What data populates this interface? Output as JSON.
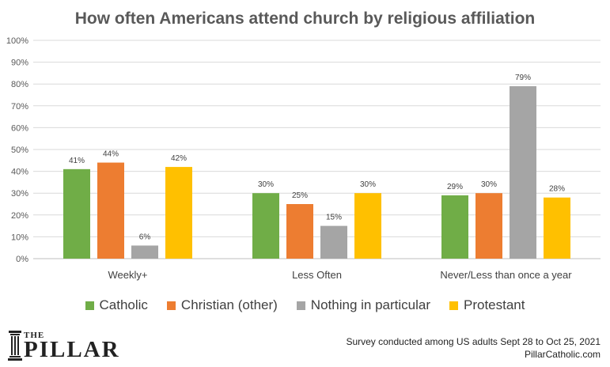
{
  "chart_data": {
    "type": "bar",
    "title": "How often Americans attend church by religious affiliation",
    "categories": [
      "Weekly+",
      "Less Often",
      "Never/Less than once a year"
    ],
    "series": [
      {
        "name": "Catholic",
        "color": "#70ad47",
        "values": [
          41,
          30,
          29
        ],
        "labels": [
          "41%",
          "30%",
          "29%"
        ]
      },
      {
        "name": "Christian (other)",
        "color": "#ed7d31",
        "values": [
          44,
          25,
          30
        ],
        "labels": [
          "44%",
          "25%",
          "30%"
        ]
      },
      {
        "name": "Nothing in particular",
        "color": "#a5a5a5",
        "values": [
          6,
          15,
          79
        ],
        "labels": [
          "6%",
          "15%",
          "79%"
        ]
      },
      {
        "name": "Protestant",
        "color": "#ffc000",
        "values": [
          42,
          30,
          28
        ],
        "labels": [
          "42%",
          "30%",
          "28%"
        ]
      }
    ],
    "ylim": [
      0,
      100
    ],
    "yticks": [
      "0%",
      "10%",
      "20%",
      "30%",
      "40%",
      "50%",
      "60%",
      "70%",
      "80%",
      "90%",
      "100%"
    ],
    "grid": true,
    "legend_position": "bottom"
  },
  "branding": {
    "logo_the": "THE",
    "logo_word": "PILLAR"
  },
  "footer": {
    "note": "Survey conducted among US adults  Sept 28 to Oct 25, 2021",
    "site": "PillarCatholic.com"
  }
}
